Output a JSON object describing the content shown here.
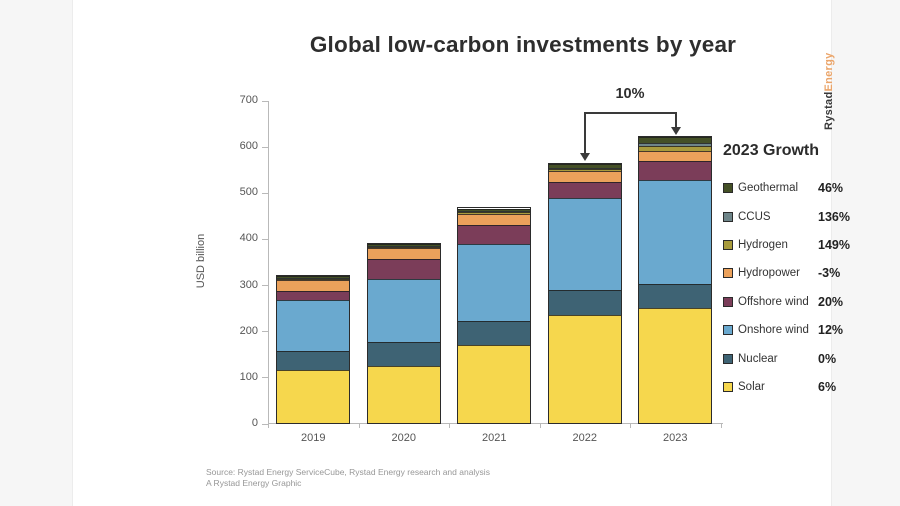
{
  "brand": {
    "name_primary": "Rystad",
    "name_secondary": "Energy"
  },
  "annotation": {
    "total_growth_label": "10%"
  },
  "legend": {
    "heading": "2023 Growth",
    "items": [
      {
        "label": "Geothermal",
        "growth": "46%",
        "color": "#445026"
      },
      {
        "label": "CCUS",
        "growth": "136%",
        "color": "#6e8589"
      },
      {
        "label": "Hydrogen",
        "growth": "149%",
        "color": "#a89b3c"
      },
      {
        "label": "Hydropower",
        "growth": "-3%",
        "color": "#eba15b"
      },
      {
        "label": "Offshore wind",
        "growth": "20%",
        "color": "#7b3d59"
      },
      {
        "label": "Onshore wind",
        "growth": "12%",
        "color": "#6aa9cf"
      },
      {
        "label": "Nuclear",
        "growth": "0%",
        "color": "#3e6374"
      },
      {
        "label": "Solar",
        "growth": "6%",
        "color": "#f6d74d"
      }
    ]
  },
  "footer": {
    "source_line": "Source: Rystad Energy ServiceCube, Rystad Energy research and analysis",
    "credit_line": "A Rystad Energy Graphic"
  },
  "chart_data": {
    "type": "bar",
    "stacked": true,
    "title": "Global low-carbon investments by year",
    "xlabel": "",
    "ylabel": "USD billion",
    "ylim": [
      0,
      700
    ],
    "y_tick_step": 100,
    "grid": false,
    "legend_position": "right",
    "categories": [
      "2019",
      "2020",
      "2021",
      "2022",
      "2023"
    ],
    "series": [
      {
        "name": "Solar",
        "color": "#f6d74d",
        "values": [
          115,
          123,
          170,
          235,
          249
        ]
      },
      {
        "name": "Nuclear",
        "color": "#3e6374",
        "values": [
          42,
          52,
          52,
          53,
          53
        ]
      },
      {
        "name": "Onshore wind",
        "color": "#6aa9cf",
        "values": [
          110,
          138,
          165,
          200,
          224
        ]
      },
      {
        "name": "Offshore wind",
        "color": "#7b3d59",
        "values": [
          20,
          43,
          42,
          35,
          42
        ]
      },
      {
        "name": "Hydropower",
        "color": "#eba15b",
        "values": [
          24,
          24,
          24,
          23,
          22
        ]
      },
      {
        "name": "Hydrogen",
        "color": "#a89b3c",
        "values": [
          2,
          2,
          4,
          4,
          10
        ]
      },
      {
        "name": "CCUS",
        "color": "#6e8589",
        "values": [
          2,
          2,
          3,
          3,
          7
        ]
      },
      {
        "name": "Geothermal",
        "color": "#445026",
        "values": [
          4,
          5,
          5,
          8,
          12
        ]
      }
    ],
    "totals": [
      319,
      389,
      465,
      561,
      619
    ],
    "annotations": [
      {
        "text": "10%",
        "meaning": "total growth from 2022 to 2023",
        "from_category": "2022",
        "to_category": "2023"
      }
    ]
  }
}
